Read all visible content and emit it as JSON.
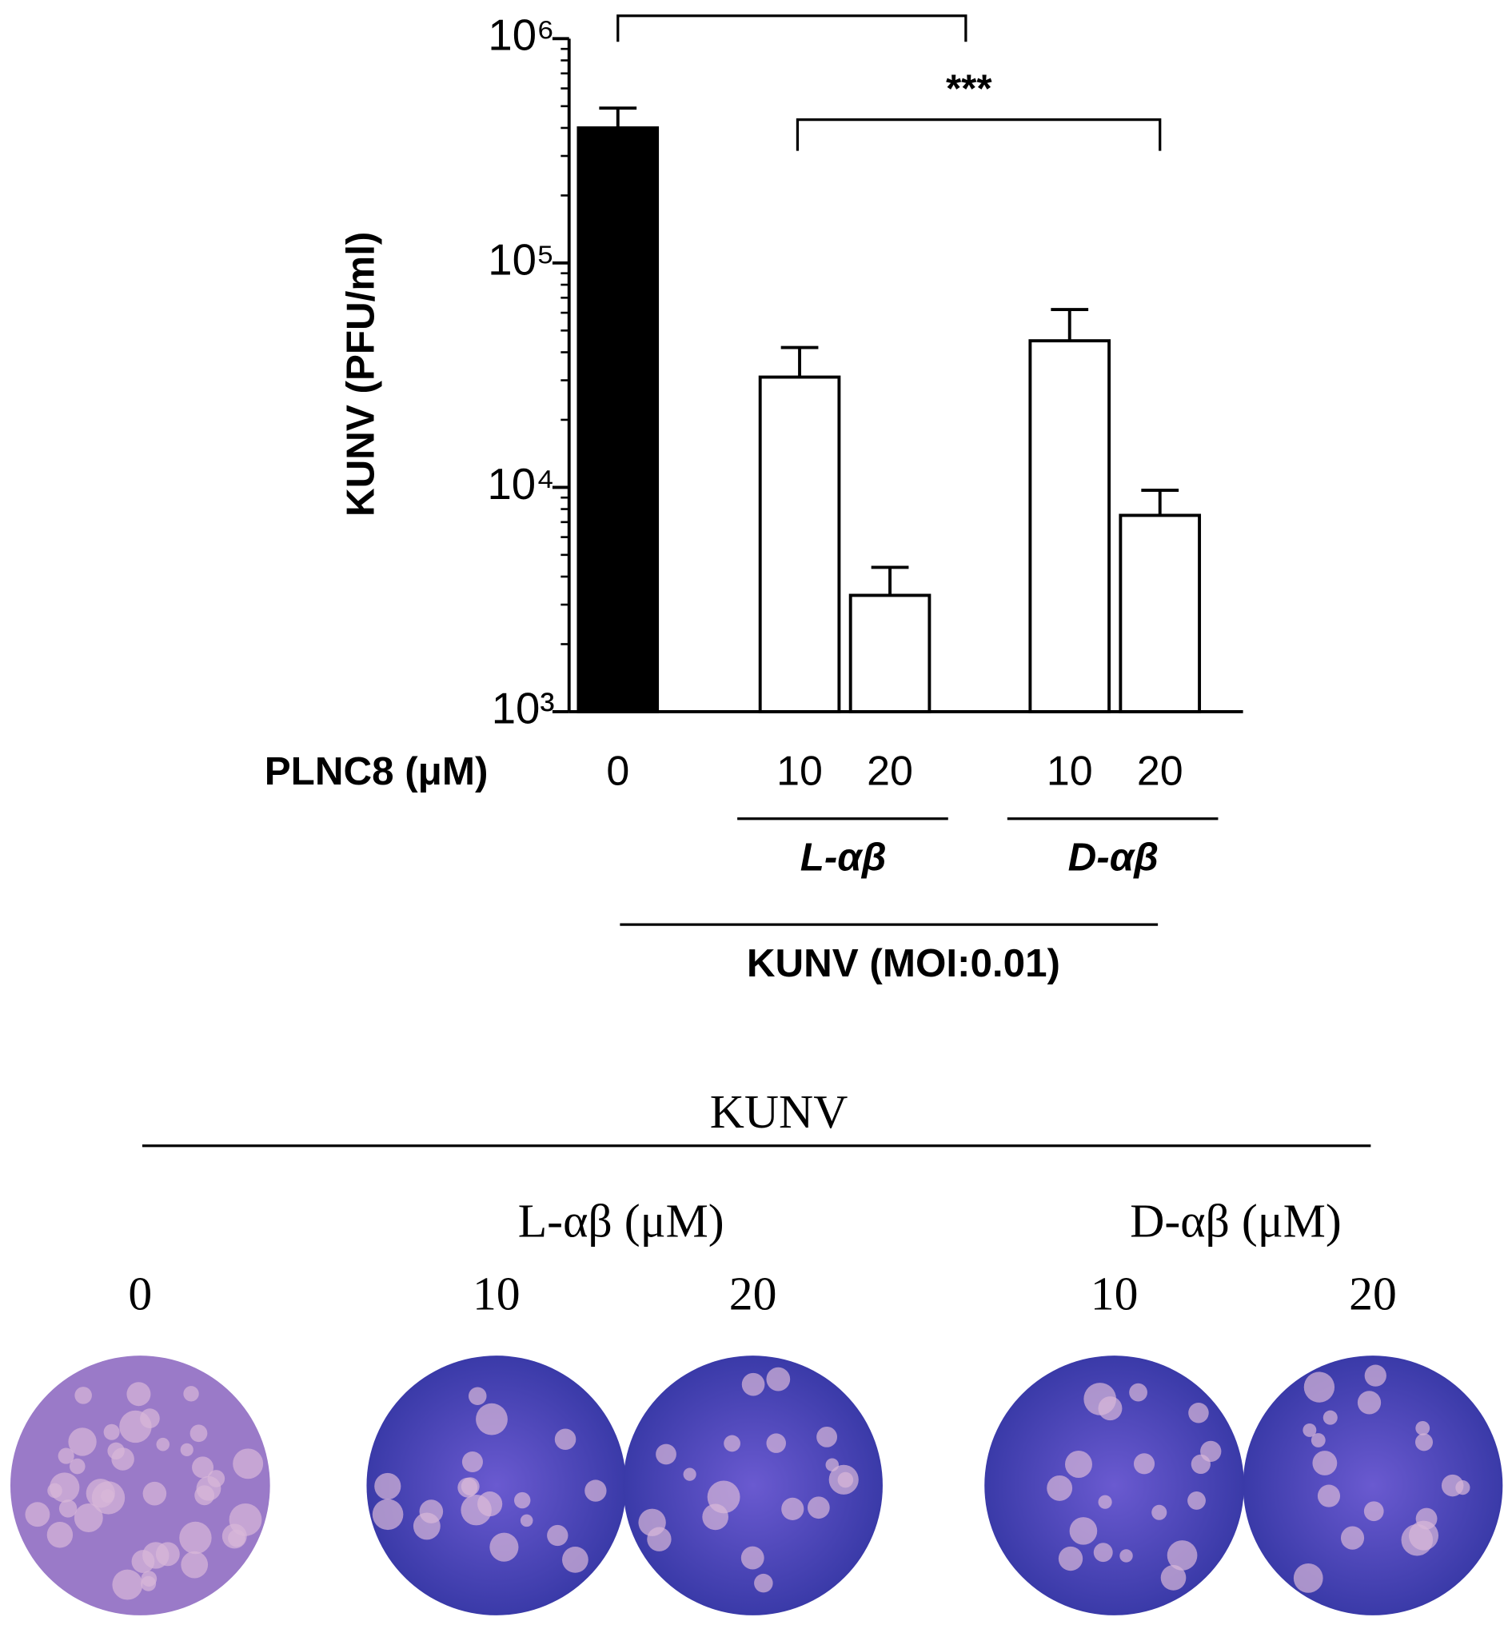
{
  "chart_data": {
    "type": "bar",
    "y_label": "KUNV (PFU/ml)",
    "x_label": "PLNC8 (μM)",
    "categories": [
      "0",
      "10",
      "20",
      "10",
      "20"
    ],
    "values": [
      400000,
      31000,
      3300,
      45000,
      7500
    ],
    "errors": [
      90000,
      11000,
      1100,
      17000,
      2200
    ],
    "colors": [
      "#000000",
      "#ffffff",
      "#ffffff",
      "#ffffff",
      "#ffffff"
    ],
    "groups": [
      "L-αβ",
      "D-αβ"
    ],
    "group_caption": "KUNV (MOI:0.01)",
    "significance": "***",
    "log_scale": true,
    "ylim": [
      1000,
      1000000
    ],
    "yticks": [
      {
        "value": 1000,
        "label": "10³"
      },
      {
        "value": 10000,
        "label": "10⁴"
      },
      {
        "value": 100000,
        "label": "10⁵"
      },
      {
        "value": 1000000,
        "label": "10⁶"
      }
    ]
  },
  "plaques": {
    "title": "KUNV",
    "groups": [
      "L-αβ (μM)",
      "D-αβ (μM)"
    ],
    "labels": [
      "0",
      "10",
      "20",
      "10",
      "20"
    ]
  }
}
